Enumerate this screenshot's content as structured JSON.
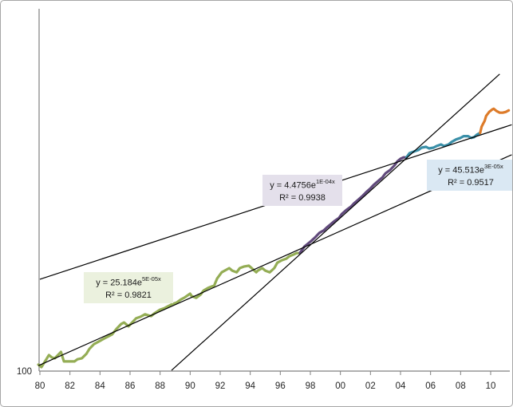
{
  "chart_data": {
    "type": "line",
    "title": "",
    "x_axis": {
      "tick_labels": [
        "80",
        "82",
        "84",
        "86",
        "88",
        "90",
        "92",
        "94",
        "96",
        "98",
        "00",
        "02",
        "04",
        "06",
        "08",
        "10"
      ],
      "tick_years": [
        1980,
        1982,
        1984,
        1986,
        1988,
        1990,
        1992,
        1994,
        1996,
        1998,
        2000,
        2002,
        2004,
        2006,
        2008,
        2010
      ],
      "range_years": [
        1980,
        2011.4
      ]
    },
    "y_axis": {
      "scale": "log",
      "tick_labels": [
        "100"
      ],
      "baseline_value": 100
    },
    "axis_color": "#808080",
    "tick_label_color": "#262626",
    "trend_color": "#000000",
    "series": [
      {
        "name": "segment-1980-1997",
        "color": "#94ad55",
        "points": [
          [
            1979.9,
            101.8
          ],
          [
            1980.1,
            101.1
          ],
          [
            1980.4,
            103.1
          ],
          [
            1980.6,
            104.5
          ],
          [
            1980.8,
            103.8
          ],
          [
            1981.0,
            103.6
          ],
          [
            1981.4,
            105.4
          ],
          [
            1981.6,
            102.7
          ],
          [
            1982.0,
            102.7
          ],
          [
            1982.3,
            102.7
          ],
          [
            1982.5,
            103.3
          ],
          [
            1982.8,
            103.6
          ],
          [
            1983.1,
            104.9
          ],
          [
            1983.3,
            106.3
          ],
          [
            1983.6,
            107.7
          ],
          [
            1983.9,
            108.4
          ],
          [
            1984.3,
            109.4
          ],
          [
            1984.6,
            110.1
          ],
          [
            1984.8,
            110.6
          ],
          [
            1985.1,
            112.3
          ],
          [
            1985.4,
            113.8
          ],
          [
            1985.6,
            114.3
          ],
          [
            1985.9,
            113.1
          ],
          [
            1986.2,
            114.6
          ],
          [
            1986.4,
            115.6
          ],
          [
            1986.7,
            116.1
          ],
          [
            1987.0,
            116.9
          ],
          [
            1987.2,
            116.6
          ],
          [
            1987.4,
            116.3
          ],
          [
            1987.6,
            117.1
          ],
          [
            1988.0,
            118.4
          ],
          [
            1988.3,
            118.9
          ],
          [
            1988.5,
            119.4
          ],
          [
            1988.8,
            120.2
          ],
          [
            1989.1,
            120.7
          ],
          [
            1989.4,
            121.8
          ],
          [
            1989.6,
            122.3
          ],
          [
            1990.0,
            123.7
          ],
          [
            1990.1,
            122.9
          ],
          [
            1990.4,
            122.3
          ],
          [
            1990.7,
            123.4
          ],
          [
            1990.9,
            124.8
          ],
          [
            1991.2,
            125.7
          ],
          [
            1991.6,
            126.5
          ],
          [
            1991.8,
            129.0
          ],
          [
            1992.1,
            131.2
          ],
          [
            1992.4,
            132.1
          ],
          [
            1992.6,
            132.7
          ],
          [
            1992.8,
            131.8
          ],
          [
            1993.1,
            131.2
          ],
          [
            1993.3,
            132.7
          ],
          [
            1993.6,
            133.3
          ],
          [
            1993.9,
            133.6
          ],
          [
            1994.1,
            132.7
          ],
          [
            1994.4,
            131.2
          ],
          [
            1994.5,
            131.8
          ],
          [
            1994.8,
            132.7
          ],
          [
            1995.0,
            131.8
          ],
          [
            1995.3,
            131.2
          ],
          [
            1995.6,
            132.7
          ],
          [
            1995.8,
            134.7
          ],
          [
            1996.1,
            135.6
          ],
          [
            1996.4,
            136.2
          ],
          [
            1996.6,
            137.1
          ],
          [
            1996.9,
            137.8
          ],
          [
            1997.1,
            138.3
          ],
          [
            1997.3,
            138.3
          ]
        ]
      },
      {
        "name": "segment-1997-2004",
        "color": "#60497b",
        "points": [
          [
            1997.3,
            138.3
          ],
          [
            1997.6,
            140.8
          ],
          [
            1998.0,
            142.7
          ],
          [
            1998.3,
            144.3
          ],
          [
            1998.6,
            146.2
          ],
          [
            1998.9,
            147.2
          ],
          [
            1999.1,
            148.4
          ],
          [
            1999.3,
            149.4
          ],
          [
            1999.6,
            151.0
          ],
          [
            1999.9,
            152.3
          ],
          [
            2000.1,
            154.0
          ],
          [
            2000.4,
            155.7
          ],
          [
            2000.7,
            157.1
          ],
          [
            2000.9,
            158.5
          ],
          [
            2001.2,
            160.2
          ],
          [
            2001.5,
            162.0
          ],
          [
            2001.7,
            163.4
          ],
          [
            2002.0,
            165.2
          ],
          [
            2002.2,
            166.7
          ],
          [
            2002.5,
            168.5
          ],
          [
            2002.8,
            170.3
          ],
          [
            2003.0,
            172.2
          ],
          [
            2003.3,
            173.7
          ],
          [
            2003.6,
            176.0
          ],
          [
            2003.8,
            178.0
          ],
          [
            2004.0,
            179.2
          ],
          [
            2004.2,
            179.9
          ],
          [
            2004.4,
            179.9
          ]
        ]
      },
      {
        "name": "segment-2004-2009",
        "color": "#3a8fa8",
        "points": [
          [
            2004.4,
            179.9
          ],
          [
            2004.6,
            182.0
          ],
          [
            2004.9,
            182.8
          ],
          [
            2005.2,
            183.6
          ],
          [
            2005.4,
            184.8
          ],
          [
            2005.7,
            185.2
          ],
          [
            2005.9,
            184.4
          ],
          [
            2006.2,
            184.8
          ],
          [
            2006.4,
            185.6
          ],
          [
            2006.7,
            186.4
          ],
          [
            2006.9,
            185.6
          ],
          [
            2007.2,
            186.4
          ],
          [
            2007.4,
            187.7
          ],
          [
            2007.7,
            189.0
          ],
          [
            2008.0,
            189.8
          ],
          [
            2008.2,
            190.7
          ],
          [
            2008.5,
            190.7
          ],
          [
            2008.7,
            189.8
          ],
          [
            2008.9,
            190.2
          ],
          [
            2009.1,
            191.6
          ],
          [
            2009.3,
            192.4
          ]
        ]
      },
      {
        "name": "segment-2009-2011",
        "color": "#dd7b29",
        "points": [
          [
            2009.3,
            192.4
          ],
          [
            2009.4,
            195.8
          ],
          [
            2009.6,
            198.9
          ],
          [
            2009.7,
            201.6
          ],
          [
            2009.9,
            203.8
          ],
          [
            2010.1,
            205.2
          ],
          [
            2010.2,
            205.6
          ],
          [
            2010.4,
            204.3
          ],
          [
            2010.6,
            203.4
          ],
          [
            2010.8,
            203.4
          ],
          [
            2011.0,
            203.8
          ],
          [
            2011.2,
            204.7
          ]
        ]
      }
    ],
    "trendlines": [
      {
        "name": "trend-1980-1997",
        "equation_prefix": "y = 25.184e",
        "equation_exponent": "5E-05x",
        "r2": "R² = 0.9821",
        "start": [
          1979.9,
          101.5
        ],
        "end": [
          2011.4,
          181.2
        ],
        "label_bg": "#ebf1de"
      },
      {
        "name": "trend-1997-2004",
        "equation_prefix": "y = 4.4756e",
        "equation_exponent": "1E-04x",
        "r2": "R² = 0.9938",
        "start": [
          1988.76,
          100.2
        ],
        "end": [
          2010.6,
          226.2
        ],
        "label_bg": "#e4e0eb"
      },
      {
        "name": "trend-2004-2009",
        "equation_prefix": "y = 45.513e",
        "equation_exponent": "3E-05x",
        "r2": "R² = 0.9517",
        "start": [
          1980.0,
          128.7
        ],
        "end": [
          2011.4,
          196.8
        ],
        "label_bg": "#dae8f3"
      }
    ]
  }
}
